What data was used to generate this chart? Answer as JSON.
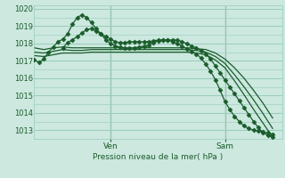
{
  "background_color": "#cce8df",
  "grid_color": "#99ccbb",
  "line_color": "#1a5c2a",
  "title": "Pression niveau de la mer( hPa )",
  "ylim": [
    1012.5,
    1020.2
  ],
  "yticks": [
    1013,
    1014,
    1015,
    1016,
    1017,
    1018,
    1019,
    1020
  ],
  "ven_x": 8,
  "sam_x": 20,
  "xlim": [
    0,
    26
  ],
  "series": [
    {
      "x": [
        0,
        0.5,
        1,
        1.5,
        2,
        2.5,
        3,
        3.5,
        4,
        4.5,
        5,
        5.5,
        6,
        6.5,
        7,
        7.5,
        8,
        8.5,
        9,
        9.5,
        10,
        10.5,
        11,
        11.5,
        12,
        12.5,
        13,
        13.5,
        14,
        14.5,
        15,
        15.5,
        16,
        16.5,
        17,
        17.5,
        18,
        18.5,
        19,
        19.5,
        20,
        20.5,
        21,
        21.5,
        22,
        22.5,
        23,
        23.5,
        24,
        24.5,
        25
      ],
      "y": [
        1017.05,
        1016.9,
        1017.1,
        1017.5,
        1017.8,
        1018.1,
        1018.25,
        1018.55,
        1019.1,
        1019.5,
        1019.65,
        1019.5,
        1019.2,
        1018.85,
        1018.55,
        1018.2,
        1018.0,
        1017.85,
        1017.8,
        1017.75,
        1017.75,
        1017.75,
        1017.8,
        1017.85,
        1017.9,
        1018.05,
        1018.15,
        1018.2,
        1018.2,
        1018.2,
        1018.2,
        1018.1,
        1018.0,
        1017.85,
        1017.75,
        1017.6,
        1017.4,
        1017.1,
        1016.7,
        1016.3,
        1015.9,
        1015.5,
        1015.1,
        1014.7,
        1014.3,
        1013.9,
        1013.5,
        1013.15,
        1012.85,
        1012.7,
        1012.6
      ],
      "marker": "D",
      "ms": 2.5,
      "lw": 0.9
    },
    {
      "x": [
        0,
        1,
        2,
        3,
        4,
        5,
        6,
        7,
        8,
        9,
        10,
        11,
        12,
        13,
        14,
        15,
        16,
        17,
        18,
        19,
        20,
        21,
        22,
        23,
        24,
        25
      ],
      "y": [
        1017.75,
        1017.65,
        1017.75,
        1017.8,
        1017.75,
        1017.75,
        1017.75,
        1017.75,
        1017.75,
        1017.75,
        1017.75,
        1017.75,
        1017.75,
        1017.75,
        1017.75,
        1017.75,
        1017.75,
        1017.7,
        1017.65,
        1017.45,
        1017.1,
        1016.6,
        1016.0,
        1015.3,
        1014.55,
        1013.7
      ],
      "marker": null,
      "ms": 0,
      "lw": 0.9
    },
    {
      "x": [
        0,
        1,
        2,
        3,
        4,
        5,
        6,
        7,
        8,
        9,
        10,
        11,
        12,
        13,
        14,
        15,
        16,
        17,
        18,
        19,
        20,
        21,
        22,
        23,
        24,
        25
      ],
      "y": [
        1017.5,
        1017.45,
        1017.55,
        1017.65,
        1017.6,
        1017.6,
        1017.65,
        1017.65,
        1017.65,
        1017.65,
        1017.65,
        1017.65,
        1017.65,
        1017.65,
        1017.65,
        1017.65,
        1017.65,
        1017.6,
        1017.5,
        1017.25,
        1016.85,
        1016.2,
        1015.5,
        1014.75,
        1013.95,
        1013.1
      ],
      "marker": null,
      "ms": 0,
      "lw": 0.9
    },
    {
      "x": [
        0,
        1,
        2,
        3,
        4,
        5,
        6,
        7,
        8,
        9,
        10,
        11,
        12,
        13,
        14,
        15,
        16,
        17,
        18,
        19,
        20,
        21,
        22,
        23,
        24,
        25
      ],
      "y": [
        1017.3,
        1017.25,
        1017.35,
        1017.45,
        1017.45,
        1017.45,
        1017.5,
        1017.5,
        1017.5,
        1017.5,
        1017.5,
        1017.5,
        1017.5,
        1017.5,
        1017.5,
        1017.5,
        1017.5,
        1017.45,
        1017.35,
        1017.05,
        1016.6,
        1015.85,
        1015.05,
        1014.2,
        1013.4,
        1012.6
      ],
      "marker": null,
      "ms": 0,
      "lw": 0.9
    },
    {
      "x": [
        3,
        3.5,
        4,
        4.5,
        5,
        5.5,
        6,
        6.5,
        7,
        7.5,
        8,
        8.5,
        9,
        9.5,
        10,
        10.5,
        11,
        11.5,
        12,
        12.5,
        13,
        13.5,
        14,
        14.5,
        15,
        15.5,
        16,
        16.5,
        17,
        17.5,
        18,
        18.5,
        19,
        19.5,
        20,
        20.5,
        21,
        21.5,
        22,
        22.5,
        23,
        23.5,
        24,
        24.5,
        25
      ],
      "y": [
        1017.75,
        1018.05,
        1018.2,
        1018.4,
        1018.6,
        1018.8,
        1018.85,
        1018.7,
        1018.55,
        1018.4,
        1018.25,
        1018.1,
        1018.05,
        1018.05,
        1018.1,
        1018.1,
        1018.1,
        1018.1,
        1018.1,
        1018.15,
        1018.2,
        1018.2,
        1018.2,
        1018.1,
        1018.0,
        1017.85,
        1017.7,
        1017.55,
        1017.4,
        1017.15,
        1016.8,
        1016.4,
        1015.9,
        1015.3,
        1014.65,
        1014.2,
        1013.8,
        1013.5,
        1013.25,
        1013.1,
        1013.0,
        1012.95,
        1012.9,
        1012.85,
        1012.75
      ],
      "marker": "D",
      "ms": 2.5,
      "lw": 0.9
    }
  ]
}
